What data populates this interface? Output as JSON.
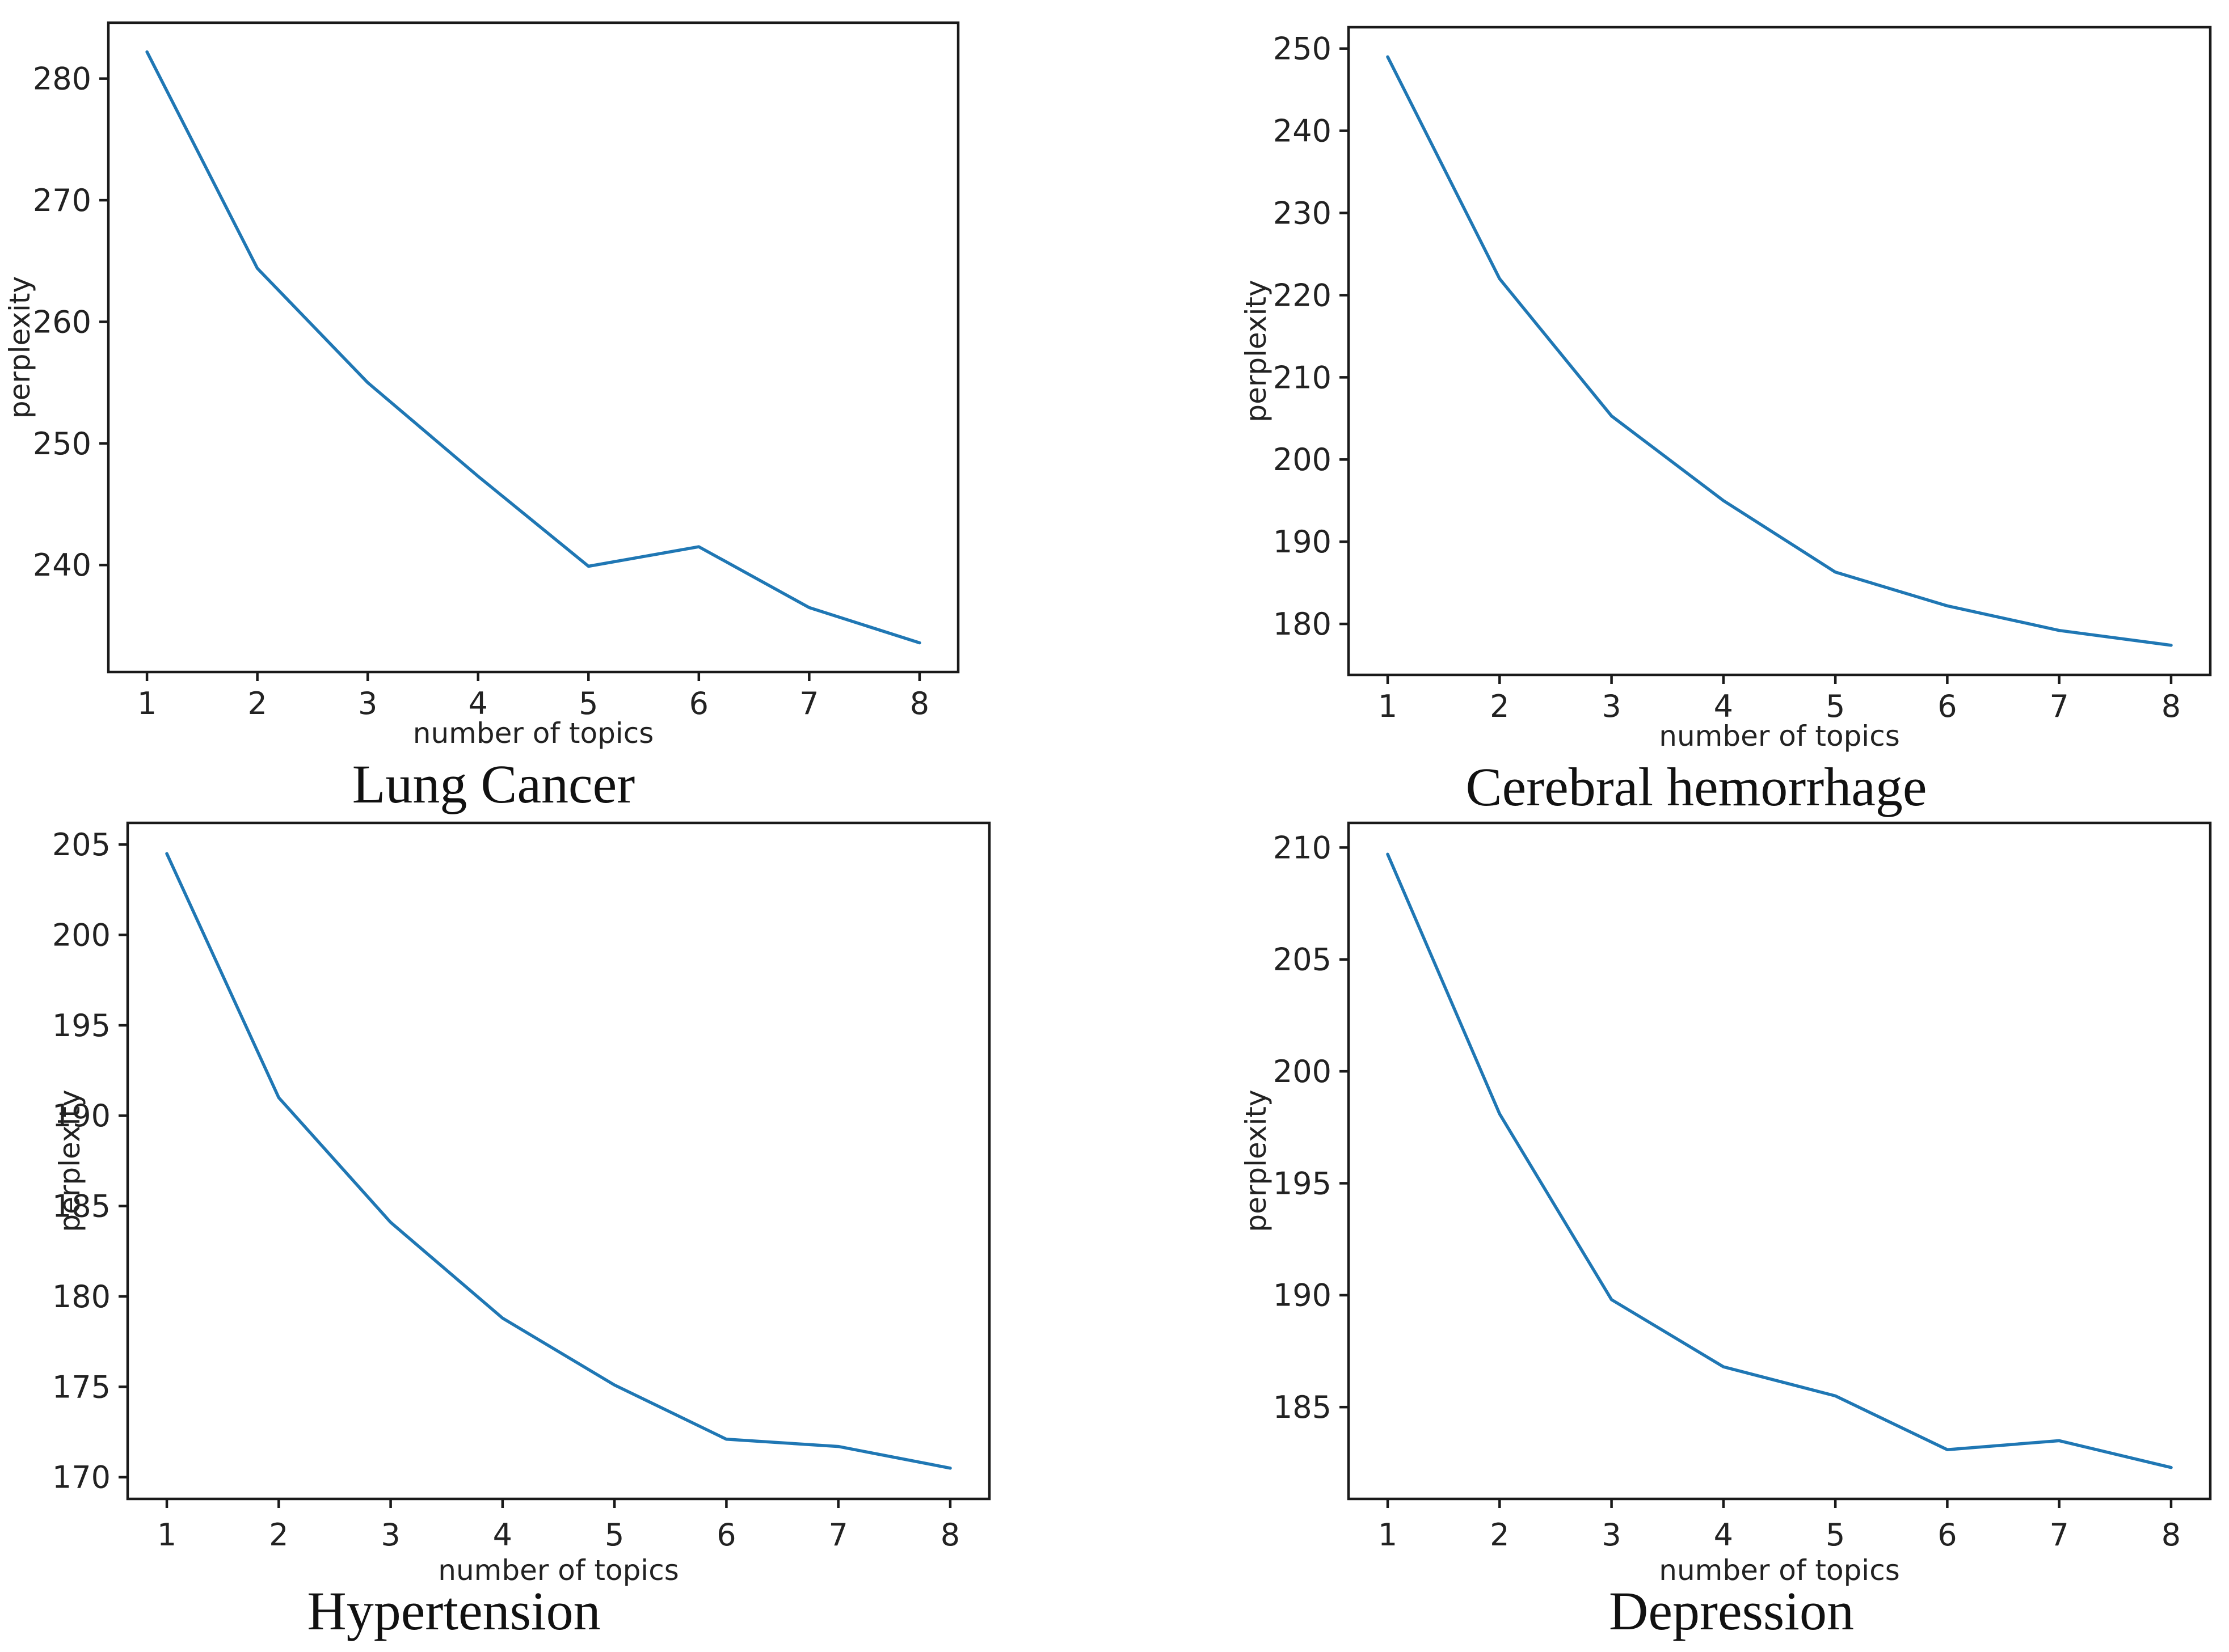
{
  "figure": {
    "background": "#ffffff",
    "line_color": "#1f77b4",
    "axis_color": "#1a1a1a",
    "text_color": "#222222"
  },
  "chart_data": [
    {
      "type": "line",
      "title": "Lung Cancer",
      "xlabel": "number of topics",
      "ylabel": "perplexity",
      "x": [
        1,
        2,
        3,
        4,
        5,
        6,
        7,
        8
      ],
      "values": [
        282.2,
        264.4,
        255.0,
        247.3,
        239.9,
        241.5,
        236.5,
        233.6
      ],
      "xticks": [
        1,
        2,
        3,
        4,
        5,
        6,
        7,
        8
      ],
      "yticks": [
        240,
        250,
        260,
        270,
        280
      ],
      "xlim": [
        0.65,
        8.35
      ],
      "ylim": [
        231.2,
        284.6
      ],
      "grid": false,
      "legend": false
    },
    {
      "type": "line",
      "title": "Cerebral hemorrhage",
      "xlabel": "number of topics",
      "ylabel": "perplexity",
      "x": [
        1,
        2,
        3,
        4,
        5,
        6,
        7,
        8
      ],
      "values": [
        249.0,
        222.0,
        205.3,
        195.0,
        186.3,
        182.2,
        179.2,
        177.4
      ],
      "xticks": [
        1,
        2,
        3,
        4,
        5,
        6,
        7,
        8
      ],
      "yticks": [
        180,
        190,
        200,
        210,
        220,
        230,
        240,
        250
      ],
      "xlim": [
        0.65,
        8.35
      ],
      "ylim": [
        173.8,
        252.6
      ],
      "grid": false,
      "legend": false
    },
    {
      "type": "line",
      "title": "Hypertension",
      "xlabel": "number of topics",
      "ylabel": "perplexity",
      "x": [
        1,
        2,
        3,
        4,
        5,
        6,
        7,
        8
      ],
      "values": [
        204.5,
        191.0,
        184.1,
        178.8,
        175.1,
        172.1,
        171.7,
        170.5
      ],
      "xticks": [
        1,
        2,
        3,
        4,
        5,
        6,
        7,
        8
      ],
      "yticks": [
        170,
        175,
        180,
        185,
        190,
        195,
        200,
        205
      ],
      "xlim": [
        0.65,
        8.35
      ],
      "ylim": [
        168.8,
        206.2
      ],
      "grid": false,
      "legend": false
    },
    {
      "type": "line",
      "title": "Depression",
      "xlabel": "number of topics",
      "ylabel": "perplexity",
      "x": [
        1,
        2,
        3,
        4,
        5,
        6,
        7,
        8
      ],
      "values": [
        209.7,
        198.1,
        189.8,
        186.8,
        185.5,
        183.1,
        183.5,
        182.3
      ],
      "xticks": [
        1,
        2,
        3,
        4,
        5,
        6,
        7,
        8
      ],
      "yticks": [
        185,
        190,
        195,
        200,
        205,
        210
      ],
      "xlim": [
        0.65,
        8.35
      ],
      "ylim": [
        180.9,
        211.1
      ],
      "grid": false,
      "legend": false
    }
  ]
}
